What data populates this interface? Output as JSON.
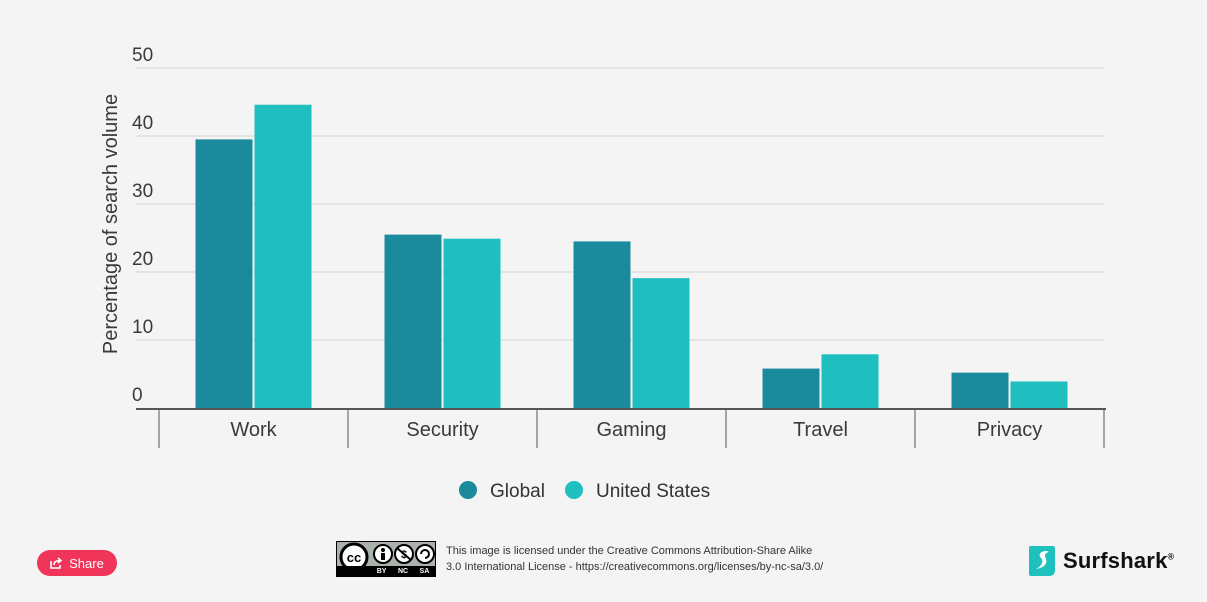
{
  "chart_data": {
    "type": "bar",
    "title": "",
    "xlabel": "",
    "ylabel": "Percentage of search volume",
    "ylim": [
      0,
      50
    ],
    "yticks": [
      0,
      10,
      20,
      30,
      40,
      50
    ],
    "grid": true,
    "legend_position": "bottom-center",
    "categories": [
      "Work",
      "Security",
      "Gaming",
      "Travel",
      "Privacy"
    ],
    "series": [
      {
        "name": "Global",
        "color": "#1b8a9c",
        "values": [
          39.5,
          25.5,
          24.5,
          5.8,
          5.2
        ]
      },
      {
        "name": "United States",
        "color": "#20bfbf",
        "values": [
          44.6,
          24.9,
          19.1,
          7.9,
          3.9
        ]
      }
    ]
  },
  "share": {
    "label": "Share"
  },
  "license": {
    "badge_tags": [
      "BY",
      "NC",
      "SA"
    ],
    "line1": "This image is licensed under the Creative Commons Attribution-Share Alike",
    "line2": "3.0 International License - https://creativecommons.org/licenses/by-nc-sa/3.0/"
  },
  "brand": {
    "name": "Surfshark",
    "mark": "®",
    "color": "#1ec1bd"
  }
}
